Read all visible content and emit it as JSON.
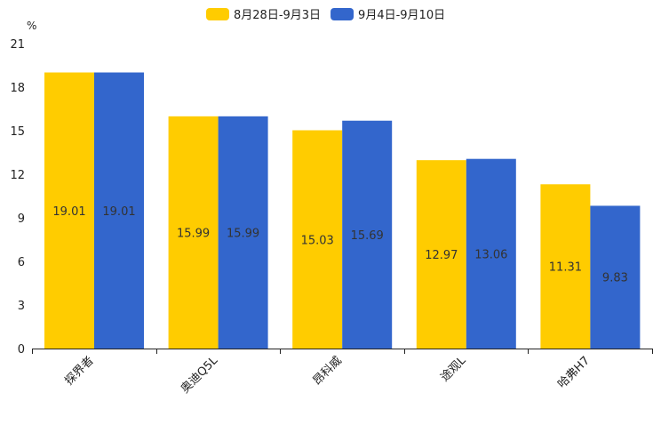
{
  "chart_data": {
    "type": "bar",
    "title": "",
    "xlabel": "",
    "ylabel": "%",
    "ylim": [
      0,
      21
    ],
    "yticks": [
      0,
      3,
      6,
      9,
      12,
      15,
      18,
      21
    ],
    "categories": [
      "探界者",
      "奥迪Q5L",
      "昂科威",
      "途观L",
      "哈弗H7"
    ],
    "series": [
      {
        "name": "8月28日-9月3日",
        "color": "#FFCC00",
        "values": [
          19.01,
          15.99,
          15.03,
          12.97,
          11.31
        ]
      },
      {
        "name": "9月4日-9月10日",
        "color": "#3366CC",
        "values": [
          19.01,
          15.99,
          15.69,
          13.06,
          9.83
        ]
      }
    ],
    "legend_position": "top-center",
    "grid": false
  }
}
